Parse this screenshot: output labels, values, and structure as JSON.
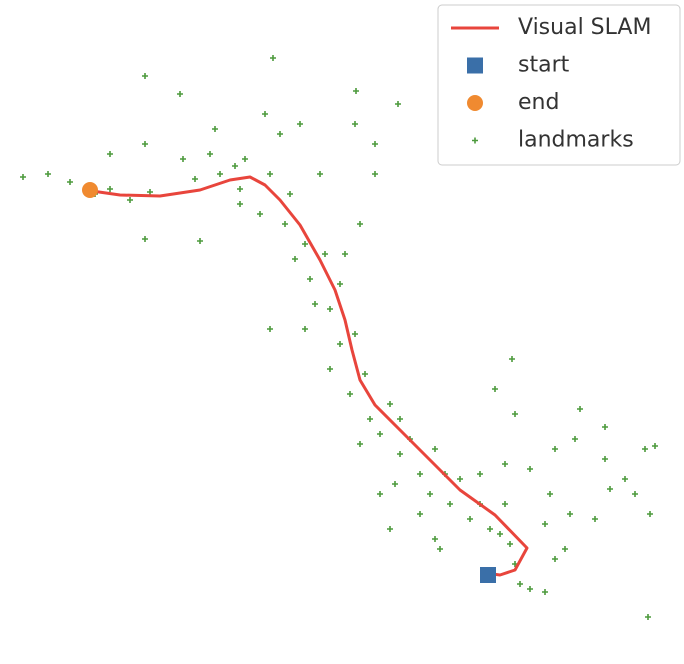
{
  "chart_data": {
    "type": "scatter",
    "legend": "upper right",
    "xlim": [
      0,
      68.4
    ],
    "ylim": [
      0,
      66.4
    ],
    "series": [
      {
        "name": "Visual SLAM",
        "marker": "line",
        "color": "#e8453c",
        "x": [
          8.5,
          12,
          16,
          20,
          23,
          25,
          26.5,
          28,
          30,
          32,
          33.5,
          34.5,
          35.2,
          36,
          37.5,
          40,
          43,
          46,
          49.5,
          52.7,
          51.5,
          50,
          48.5
        ],
        "y": [
          47.4,
          46.9,
          46.8,
          47.4,
          48.4,
          48.7,
          47.9,
          46.4,
          43.9,
          40.4,
          37.4,
          34.4,
          31.4,
          28.4,
          25.9,
          23.4,
          20.4,
          17.4,
          14.9,
          11.6,
          9.4,
          8.9,
          9.1
        ]
      },
      {
        "name": "start",
        "marker": "square",
        "color": "#3a6fa8",
        "x": [
          48.8
        ],
        "y": [
          8.9
        ]
      },
      {
        "name": "end",
        "marker": "circle",
        "color": "#f08a30",
        "x": [
          9.0
        ],
        "y": [
          47.4
        ]
      },
      {
        "name": "landmarks",
        "marker": "plus",
        "color": "#4c9a3c",
        "x": [
          2.3,
          4.8,
          7,
          9.5,
          11,
          13,
          15,
          14.5,
          11,
          14.5,
          18,
          18.3,
          19.5,
          21,
          21.5,
          22,
          23.5,
          24,
          24.5,
          26.5,
          27.3,
          28,
          27,
          26,
          20,
          24,
          28.5,
          29,
          30.5,
          29.5,
          31,
          32.5,
          31.5,
          33,
          34,
          34.5,
          36,
          35.5,
          35.6,
          37.5,
          39.8,
          37.5,
          32,
          30,
          33,
          34,
          35.5,
          36.5,
          35,
          37,
          36,
          38,
          39,
          40,
          40,
          41,
          42,
          43.5,
          43,
          42,
          38,
          39.5,
          44.5,
          45,
          46,
          47,
          48,
          49,
          50,
          51,
          44,
          43.5,
          50.5,
          51.5,
          52,
          53,
          54.5,
          49.5,
          51.2,
          51.5,
          55,
          55.5,
          54.5,
          57,
          57.5,
          58,
          60.5,
          60.5,
          61,
          62.5,
          64.5,
          65.5,
          65,
          63.5,
          59.5,
          56.5,
          55.5,
          64.8,
          50.5,
          48,
          53,
          27,
          30.5,
          39,
          14.5
        ],
        "y": [
          48.7,
          49.0,
          48.2,
          47.0,
          47.5,
          46.4,
          47.2,
          42.5,
          51,
          58.8,
          57,
          50.5,
          48.5,
          51,
          53.5,
          49,
          49.8,
          47.5,
          50.5,
          55,
          60.6,
          53,
          49,
          45,
          42.3,
          46,
          44,
          47,
          42,
          40.5,
          38.5,
          41,
          36,
          35.5,
          38,
          41,
          44,
          54,
          57.3,
          52,
          56,
          49,
          49,
          54,
          29.5,
          32,
          33,
          29,
          27,
          24.5,
          22,
          23,
          26,
          24.5,
          21,
          22.5,
          19,
          21.5,
          17,
          15,
          17,
          18,
          19,
          16,
          18.5,
          14.5,
          16,
          13.5,
          13,
          12,
          11.5,
          12.5,
          16,
          10,
          8,
          7.5,
          7.2,
          27.5,
          30.5,
          25,
          17,
          21.5,
          14,
          15,
          22.5,
          25.5,
          23.7,
          20.5,
          17.5,
          18.5,
          21.5,
          21.8,
          15,
          17,
          14.5,
          11.5,
          10.5,
          4.7,
          20,
          19,
          19.5,
          33.5,
          33.5,
          13.5,
          52
        ]
      }
    ]
  }
}
